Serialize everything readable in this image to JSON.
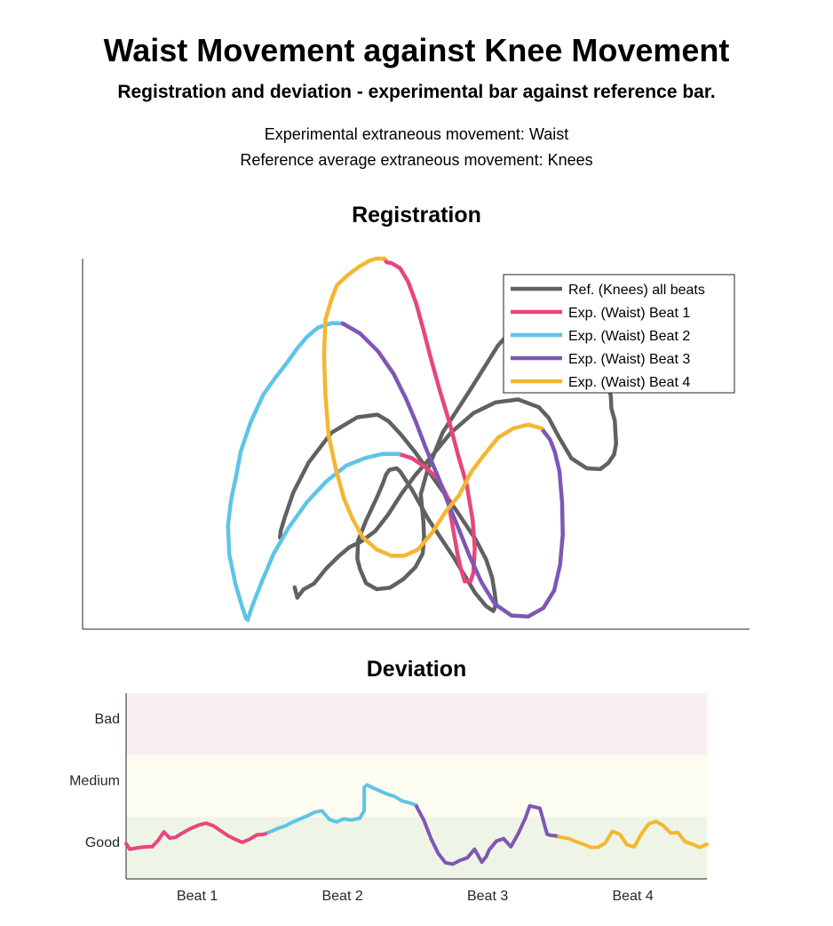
{
  "header": {
    "title": "Waist Movement against Knee Movement",
    "subtitle": "Registration and deviation - experimental bar against reference bar.",
    "info_lines": [
      "Experimental extraneous movement: Waist",
      "Reference average extraneous movement: Knees"
    ]
  },
  "colors": {
    "reference": "#616161",
    "beat1": "#e8457f",
    "beat2": "#5fc4e6",
    "beat3": "#7e57b4",
    "beat4": "#f6b631",
    "band_bad": "#f9eff1",
    "band_medium": "#fdfcf0",
    "band_good": "#eef5e7"
  },
  "chart_data": [
    {
      "type": "line",
      "title": "Registration",
      "xlabel": "",
      "ylabel": "",
      "xlim": [
        0,
        100
      ],
      "ylim": [
        0,
        100
      ],
      "grid": false,
      "legend_position": "top-right",
      "series": [
        {
          "name": "Ref. (Knees) all beats",
          "color": "#616161",
          "x": [
            29.6,
            29.7,
            30.3,
            31.6,
            33.9,
            37.3,
            41.2,
            44.2,
            45.9,
            47.7,
            49.9,
            52.9,
            56.1,
            59.0,
            60.5,
            61.4,
            61.8,
            62.0,
            61.6,
            60.5,
            58.9,
            55.6,
            51.8,
            49.4,
            47.6,
            47.1,
            46.0,
            45.5,
            45.0,
            44.2,
            42.5,
            41.3,
            41.2,
            41.6,
            42.5,
            44.1,
            46.1,
            48.1,
            49.9,
            51.0,
            51.2,
            51.1,
            50.7,
            51.7,
            54.0,
            58.1,
            62.3,
            66.4,
            69.9,
            72.1,
            73.6,
            74.8,
            76.1,
            77.5,
            78.5,
            79.2,
            79.3,
            79.8,
            79.9,
            80.0,
            79.7,
            78.8,
            77.6,
            75.6,
            73.3,
            71.4,
            69.9,
            68.4,
            65.3,
            61.9,
            58.6,
            55.2,
            52.3,
            49.8,
            47.8,
            45.8,
            43.9,
            41.8,
            40.0,
            38.4,
            36.5,
            34.7,
            33.1,
            32.2,
            31.8
          ],
          "y": [
            24.7,
            26.4,
            30.1,
            36.9,
            45.0,
            53.0,
            57.2,
            57.9,
            56.1,
            52.6,
            47.7,
            40.0,
            31.9,
            24.0,
            18.8,
            14.0,
            9.7,
            6.7,
            4.9,
            6.2,
            9.7,
            19.5,
            29.8,
            37.6,
            42.6,
            43.4,
            43.0,
            41.7,
            39.2,
            35.8,
            29.3,
            23.9,
            19.0,
            16.2,
            12.4,
            10.8,
            11.2,
            13.5,
            16.7,
            20.4,
            25.0,
            28.9,
            36.4,
            42.8,
            53.1,
            64.5,
            76.6,
            84.7,
            86.7,
            85.6,
            82.6,
            78.6,
            74.3,
            70.5,
            67.2,
            63.0,
            59.5,
            56.3,
            53.1,
            50.1,
            47.1,
            44.8,
            43.2,
            43.4,
            46.1,
            51.9,
            57.0,
            59.9,
            62.0,
            61.2,
            58.3,
            53.0,
            46.6,
            41.4,
            36.5,
            30.9,
            26.5,
            23.7,
            22.1,
            19.7,
            16.3,
            12.3,
            10.7,
            8.5,
            11.3
          ]
        },
        {
          "name": "Exp. (Waist) Beat 1",
          "color": "#e8457f",
          "x": [
            45.2,
            45.6,
            46.3,
            47.6,
            48.8,
            50.0,
            51.1,
            52.3,
            53.6,
            55.0,
            56.3,
            57.6,
            58.5,
            58.8,
            58.6,
            58.2,
            57.3,
            56.7,
            56.2,
            55.5,
            54.7,
            53.4,
            51.4,
            49.3,
            47.4
          ],
          "y": [
            100.0,
            99.0,
            98.8,
            97.4,
            93.8,
            88.0,
            80.8,
            72.5,
            64.2,
            55.8,
            47.0,
            38.9,
            29.3,
            21.8,
            15.3,
            13.0,
            12.9,
            16.4,
            20.4,
            27.6,
            35.6,
            40.4,
            43.7,
            46.2,
            47.3
          ]
        },
        {
          "name": "Exp. (Waist) Beat 2",
          "color": "#5fc4e6",
          "x": [
            47.4,
            45.0,
            42.4,
            39.5,
            36.5,
            33.6,
            30.8,
            28.6,
            26.8,
            25.4,
            24.8,
            24.8,
            24.5,
            23.9,
            22.9,
            22.0,
            21.8,
            22.2,
            22.6,
            23.0,
            23.7,
            25.2,
            27.1,
            29.0,
            30.6,
            32.2,
            33.6,
            35.3,
            37.3,
            39.0
          ],
          "y": [
            47.3,
            47.3,
            46.2,
            44.1,
            39.8,
            34.2,
            27.1,
            20.2,
            12.5,
            6.1,
            2.7,
            2.5,
            2.9,
            6.2,
            12.3,
            20.2,
            27.9,
            34.0,
            37.8,
            41.0,
            47.9,
            55.9,
            63.3,
            68.1,
            71.8,
            75.8,
            78.8,
            81.4,
            82.6,
            82.5
          ]
        },
        {
          "name": "Exp. (Waist) Beat 3",
          "color": "#7e57b4",
          "x": [
            39.0,
            41.6,
            44.3,
            46.6,
            48.5,
            50.0,
            51.5,
            53.3,
            54.9,
            56.5,
            58.0,
            59.8,
            61.8,
            64.3,
            66.8,
            69.1,
            70.7,
            71.6,
            72.0,
            71.9,
            71.5,
            70.8,
            70.1,
            68.8
          ],
          "y": [
            82.5,
            79.8,
            75.0,
            69.0,
            62.2,
            55.8,
            48.7,
            41.1,
            33.6,
            26.6,
            19.8,
            12.7,
            6.8,
            3.7,
            3.4,
            5.7,
            10.4,
            17.4,
            25.5,
            34.0,
            42.6,
            47.9,
            51.1,
            54.2
          ]
        },
        {
          "name": "Exp. (Waist) Beat 4",
          "color": "#f6b631",
          "x": [
            68.8,
            66.8,
            64.6,
            62.3,
            60.1,
            58.3,
            56.4,
            54.4,
            52.4,
            50.3,
            48.2,
            46.3,
            44.1,
            42.0,
            40.5,
            39.2,
            38.0,
            36.9,
            36.4,
            36.2,
            36.4,
            37.3,
            38.1,
            38.7,
            39.8,
            41.5,
            43.0,
            44.0,
            45.2
          ],
          "y": [
            54.2,
            55.2,
            54.2,
            51.7,
            46.8,
            42.5,
            36.0,
            31.6,
            26.0,
            21.5,
            19.8,
            19.8,
            21.5,
            24.8,
            29.7,
            35.2,
            43.0,
            52.2,
            63.3,
            74.2,
            83.5,
            88.9,
            92.7,
            93.8,
            95.6,
            97.9,
            99.4,
            100.0,
            100.0
          ]
        }
      ]
    },
    {
      "type": "line",
      "title": "Deviation",
      "xlabel": "",
      "ylabel": "",
      "categories": [
        "Beat 1",
        "Beat 2",
        "Beat 3",
        "Beat 4"
      ],
      "y_tick_labels": [
        "Good",
        "Medium",
        "Bad"
      ],
      "xlim": [
        0,
        4
      ],
      "ylim": [
        0,
        3
      ],
      "grid": false,
      "bands": [
        {
          "label": "Good",
          "from": 0.0,
          "to": 1.0
        },
        {
          "label": "Medium",
          "from": 1.0,
          "to": 2.0
        },
        {
          "label": "Bad",
          "from": 2.0,
          "to": 3.0
        }
      ],
      "series": [
        {
          "name": "Beat 1",
          "color": "#e8457f",
          "x": [
            0.0,
            0.025,
            0.05,
            0.1,
            0.15,
            0.18,
            0.22,
            0.26,
            0.3,
            0.34,
            0.38,
            0.44,
            0.5,
            0.55,
            0.6,
            0.65,
            0.7,
            0.75,
            0.8,
            0.85,
            0.9,
            0.95,
            0.98
          ],
          "y": [
            0.57,
            0.48,
            0.49,
            0.51,
            0.52,
            0.52,
            0.62,
            0.76,
            0.66,
            0.67,
            0.73,
            0.81,
            0.87,
            0.9,
            0.86,
            0.78,
            0.7,
            0.64,
            0.59,
            0.64,
            0.71,
            0.72,
            0.75
          ]
        },
        {
          "name": "Beat 2",
          "color": "#5fc4e6",
          "x": [
            0.98,
            1.05,
            1.1,
            1.15,
            1.2,
            1.25,
            1.3,
            1.35,
            1.4,
            1.45,
            1.5,
            1.55,
            1.57,
            1.61,
            1.64,
            1.64,
            1.66,
            1.7,
            1.75,
            1.8,
            1.85,
            1.9,
            1.95,
            2.0
          ],
          "y": [
            0.75,
            0.82,
            0.86,
            0.92,
            0.97,
            1.02,
            1.08,
            1.1,
            0.96,
            0.92,
            0.97,
            0.95,
            0.96,
            0.98,
            1.1,
            1.48,
            1.52,
            1.47,
            1.42,
            1.37,
            1.33,
            1.26,
            1.23,
            1.19
          ]
        },
        {
          "name": "Beat 3",
          "color": "#7e57b4",
          "x": [
            2.0,
            2.05,
            2.1,
            2.15,
            2.2,
            2.25,
            2.3,
            2.35,
            2.4,
            2.45,
            2.48,
            2.5,
            2.55,
            2.6,
            2.65,
            2.7,
            2.75,
            2.78,
            2.85,
            2.9,
            2.93,
            2.95,
            2.98
          ],
          "y": [
            1.17,
            0.95,
            0.65,
            0.41,
            0.26,
            0.24,
            0.3,
            0.34,
            0.48,
            0.27,
            0.36,
            0.47,
            0.61,
            0.65,
            0.52,
            0.73,
            0.98,
            1.18,
            1.14,
            0.72,
            0.7,
            0.7,
            0.68
          ]
        },
        {
          "name": "Beat 4",
          "color": "#f6b631",
          "x": [
            2.98,
            3.05,
            3.1,
            3.15,
            3.2,
            3.25,
            3.3,
            3.35,
            3.4,
            3.45,
            3.5,
            3.55,
            3.6,
            3.65,
            3.7,
            3.75,
            3.8,
            3.85,
            3.9,
            3.95,
            4.0
          ],
          "y": [
            0.68,
            0.65,
            0.6,
            0.56,
            0.51,
            0.51,
            0.58,
            0.77,
            0.72,
            0.55,
            0.52,
            0.73,
            0.89,
            0.93,
            0.86,
            0.74,
            0.75,
            0.6,
            0.56,
            0.51,
            0.56
          ]
        }
      ]
    }
  ]
}
